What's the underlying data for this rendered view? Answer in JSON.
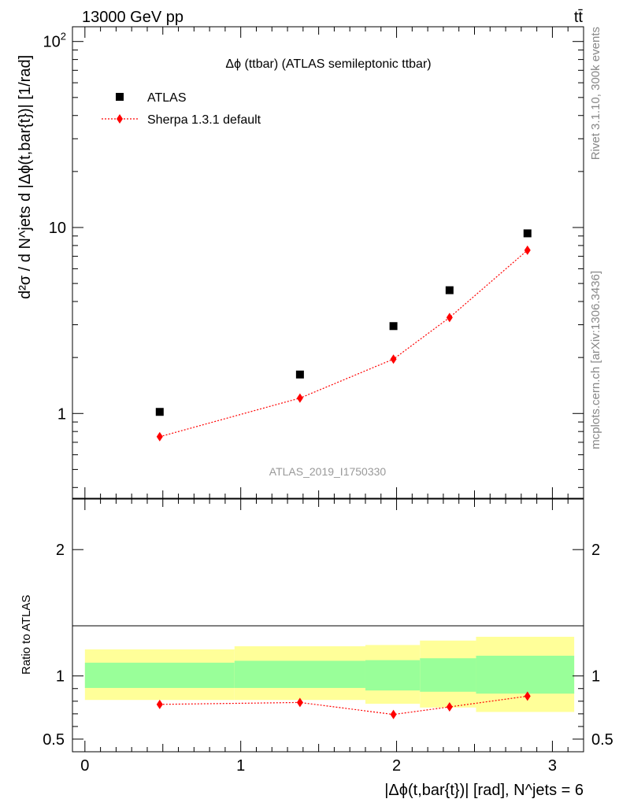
{
  "header": {
    "energy_label": "13000 GeV pp",
    "process_label": "tt̄"
  },
  "side_text": {
    "rivet": "Rivet 3.1.10,  300k events",
    "mcplots": "mcplots.cern.ch [arXiv:1306.3436]"
  },
  "chart_data": [
    {
      "type": "scatter",
      "title": "Δϕ (ttbar) (ATLAS semileptonic ttbar)",
      "analysis_label": "ATLAS_2019_I1750330",
      "ylabel": "d²σ / d N^jets d |Δϕ(t,bar{t})| [1/rad]",
      "yscale": "log",
      "ylim": [
        0.35,
        120
      ],
      "xlim": [
        -0.08,
        3.2
      ],
      "y_tick_labels": [
        "1",
        "10",
        "10²"
      ],
      "legend": {
        "placement": "top-left",
        "entries": [
          "ATLAS",
          "Sherpa 1.3.1 default"
        ]
      },
      "colors": {
        "atlas": "#000000",
        "sherpa": "#ff0000"
      },
      "series": [
        {
          "name": "ATLAS",
          "x": [
            0.48,
            1.38,
            1.98,
            2.34,
            2.84
          ],
          "values": [
            1.02,
            1.62,
            2.95,
            4.6,
            9.3
          ]
        },
        {
          "name": "Sherpa 1.3.1 default",
          "x": [
            0.48,
            1.38,
            1.98,
            2.34,
            2.84
          ],
          "values": [
            0.75,
            1.21,
            1.96,
            3.28,
            7.55
          ]
        }
      ]
    },
    {
      "type": "scatter",
      "ylabel": "Ratio to ATLAS",
      "xlabel": "|Δϕ(t,bar{t})| [rad], N^jets = 6",
      "xlim": [
        -0.08,
        3.2
      ],
      "ylim": [
        0.4,
        2.4
      ],
      "x_tick_labels": [
        "0",
        "1",
        "2",
        "3"
      ],
      "y_tick_labels": [
        "0.5",
        "1",
        "2"
      ],
      "colors": {
        "stat_band": "#99ff99",
        "total_band": "#ffff99",
        "sherpa": "#ff0000"
      },
      "bins": [
        0.0,
        0.96,
        1.8,
        2.15,
        2.51,
        3.14
      ],
      "band_inner": [
        [
          0.905,
          1.105
        ],
        [
          0.905,
          1.12
        ],
        [
          0.885,
          1.125
        ],
        [
          0.875,
          1.14
        ],
        [
          0.86,
          1.16
        ]
      ],
      "band_outer": [
        [
          0.81,
          1.21
        ],
        [
          0.81,
          1.235
        ],
        [
          0.78,
          1.245
        ],
        [
          0.75,
          1.28
        ],
        [
          0.715,
          1.31
        ]
      ],
      "series": [
        {
          "name": "Sherpa 1.3.1 default",
          "x": [
            0.48,
            1.38,
            1.98,
            2.34,
            2.84
          ],
          "values": [
            0.775,
            0.79,
            0.695,
            0.755,
            0.84
          ],
          "errors": [
            0.02,
            0.015,
            0.015,
            0.01,
            0.01
          ]
        }
      ]
    }
  ]
}
